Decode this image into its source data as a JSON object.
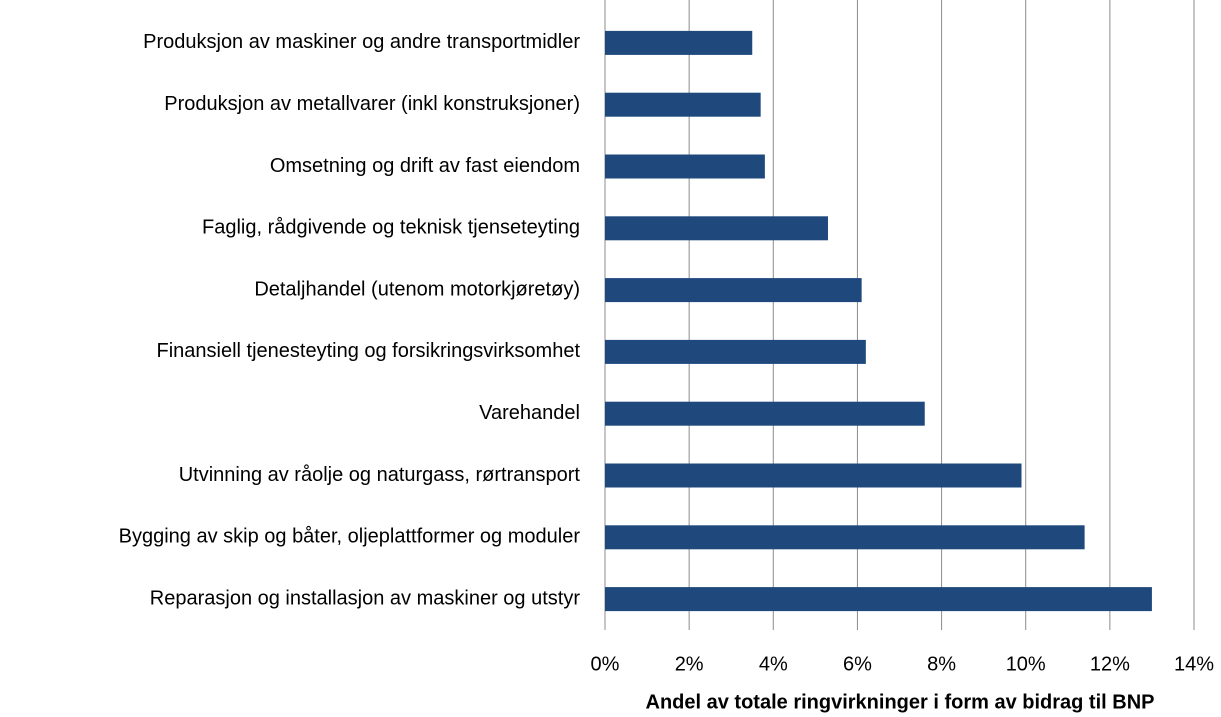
{
  "chart_data": {
    "type": "bar",
    "orientation": "horizontal",
    "x_label": "Andel av totale ringvirkninger i form av bidrag til BNP",
    "categories": [
      "Produksjon av maskiner og andre transportmidler",
      "Produksjon av metallvarer (inkl konstruksjoner)",
      "Omsetning og drift av fast eiendom",
      "Faglig, rådgivende og teknisk tjenseteyting",
      "Detaljhandel (utenom motorkjøretøy)",
      "Finansiell tjenesteyting og forsikringsvirksomhet",
      "Varehandel",
      "Utvinning av råolje og naturgass, rørtransport",
      "Bygging av skip og båter, oljeplattformer og moduler",
      "Reparasjon og installasjon av maskiner og utstyr"
    ],
    "values": [
      3.5,
      3.7,
      3.8,
      5.3,
      6.1,
      6.2,
      7.6,
      9.9,
      11.4,
      13.0
    ],
    "color": "#1f497d",
    "xlim": [
      0,
      14
    ],
    "xticks": [
      {
        "value": 0,
        "label": "0%"
      },
      {
        "value": 2,
        "label": "2%"
      },
      {
        "value": 4,
        "label": "4%"
      },
      {
        "value": 6,
        "label": "6%"
      },
      {
        "value": 8,
        "label": "8%"
      },
      {
        "value": 10,
        "label": "10%"
      },
      {
        "value": 12,
        "label": "12%"
      },
      {
        "value": 14,
        "label": "14%"
      }
    ],
    "grid": true
  }
}
